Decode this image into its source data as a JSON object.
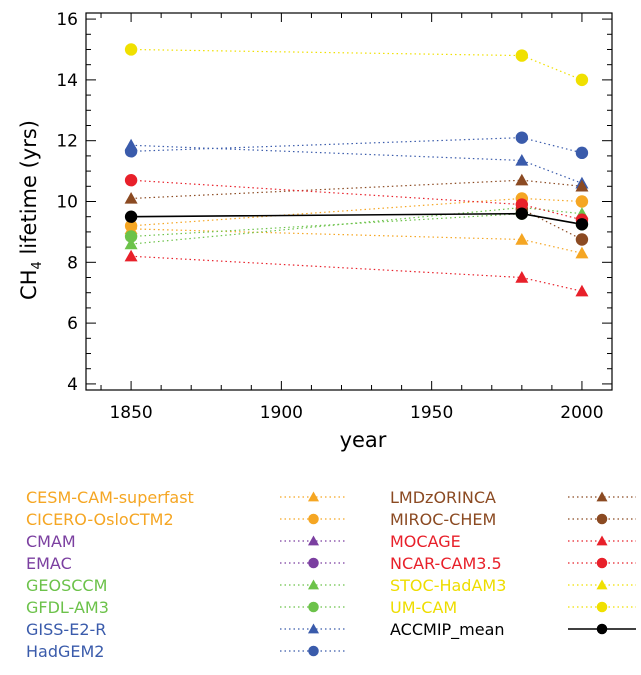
{
  "chart_data": {
    "type": "line",
    "title": "",
    "xlabel": "year",
    "ylabel_main": "CH",
    "ylabel_sub": "4",
    "ylabel_rest": " lifetime (yrs)",
    "xlim": [
      1835,
      2010
    ],
    "ylim": [
      3.8,
      16.2
    ],
    "x_ticks": [
      1850,
      1900,
      1950,
      2000
    ],
    "y_ticks": [
      4,
      6,
      8,
      10,
      12,
      14,
      16
    ],
    "legend_placement": "below",
    "series": [
      {
        "name": "CESM-CAM-superfast",
        "color": "#f5a623",
        "marker": "triangle",
        "x": [
          1850,
          1980,
          2000
        ],
        "y": [
          9.1,
          8.75,
          8.3
        ]
      },
      {
        "name": "CICERO-OsloCTM2",
        "color": "#f5a623",
        "marker": "circle",
        "x": [
          1850,
          1980,
          2000
        ],
        "y": [
          9.2,
          10.1,
          10.0
        ]
      },
      {
        "name": "CMAM",
        "color": "#7b3fa0",
        "marker": "triangle",
        "x": [
          1850,
          1980,
          2000
        ],
        "y": [
          null,
          null,
          null
        ]
      },
      {
        "name": "EMAC",
        "color": "#7b3fa0",
        "marker": "circle",
        "x": [
          1850,
          1980,
          2000
        ],
        "y": [
          null,
          null,
          null
        ]
      },
      {
        "name": "GEOSCCM",
        "color": "#6cc24a",
        "marker": "triangle",
        "x": [
          1850,
          1980,
          2000
        ],
        "y": [
          8.6,
          9.8,
          9.6
        ]
      },
      {
        "name": "GFDL-AM3",
        "color": "#6cc24a",
        "marker": "circle",
        "x": [
          1850,
          1980,
          2000
        ],
        "y": [
          8.85,
          9.6,
          9.25
        ]
      },
      {
        "name": "GISS-E2-R",
        "color": "#3a5bab",
        "marker": "triangle",
        "x": [
          1850,
          1980,
          2000
        ],
        "y": [
          11.85,
          11.35,
          10.6
        ]
      },
      {
        "name": "HadGEM2",
        "color": "#3a5bab",
        "marker": "circle",
        "x": [
          1850,
          1980,
          2000
        ],
        "y": [
          11.65,
          12.1,
          11.6
        ]
      },
      {
        "name": "LMDzORINCA",
        "color": "#8b4a22",
        "marker": "triangle",
        "x": [
          1850,
          1980,
          2000
        ],
        "y": [
          10.1,
          10.7,
          10.5
        ]
      },
      {
        "name": "MIROC-CHEM",
        "color": "#8b4a22",
        "marker": "circle",
        "x": [
          1850,
          1980,
          2000
        ],
        "y": [
          null,
          9.75,
          8.75
        ]
      },
      {
        "name": "MOCAGE",
        "color": "#e8202a",
        "marker": "triangle",
        "x": [
          1850,
          1980,
          2000
        ],
        "y": [
          8.2,
          7.5,
          7.05
        ]
      },
      {
        "name": "NCAR-CAM3.5",
        "color": "#e8202a",
        "marker": "circle",
        "x": [
          1850,
          1980,
          2000
        ],
        "y": [
          10.7,
          9.9,
          9.4
        ]
      },
      {
        "name": "STOC-HadAM3",
        "color": "#f0e000",
        "marker": "triangle",
        "x": [
          1850,
          1980,
          2000
        ],
        "y": [
          null,
          null,
          null
        ]
      },
      {
        "name": "UM-CAM",
        "color": "#f0e000",
        "marker": "circle",
        "x": [
          1850,
          1980,
          2000
        ],
        "y": [
          15.0,
          14.8,
          14.0
        ]
      },
      {
        "name": "ACCMIP_mean",
        "color": "#000000",
        "marker": "circle",
        "line": "solid",
        "x": [
          1850,
          1980,
          2000
        ],
        "y": [
          9.5,
          9.6,
          9.25
        ]
      }
    ]
  }
}
